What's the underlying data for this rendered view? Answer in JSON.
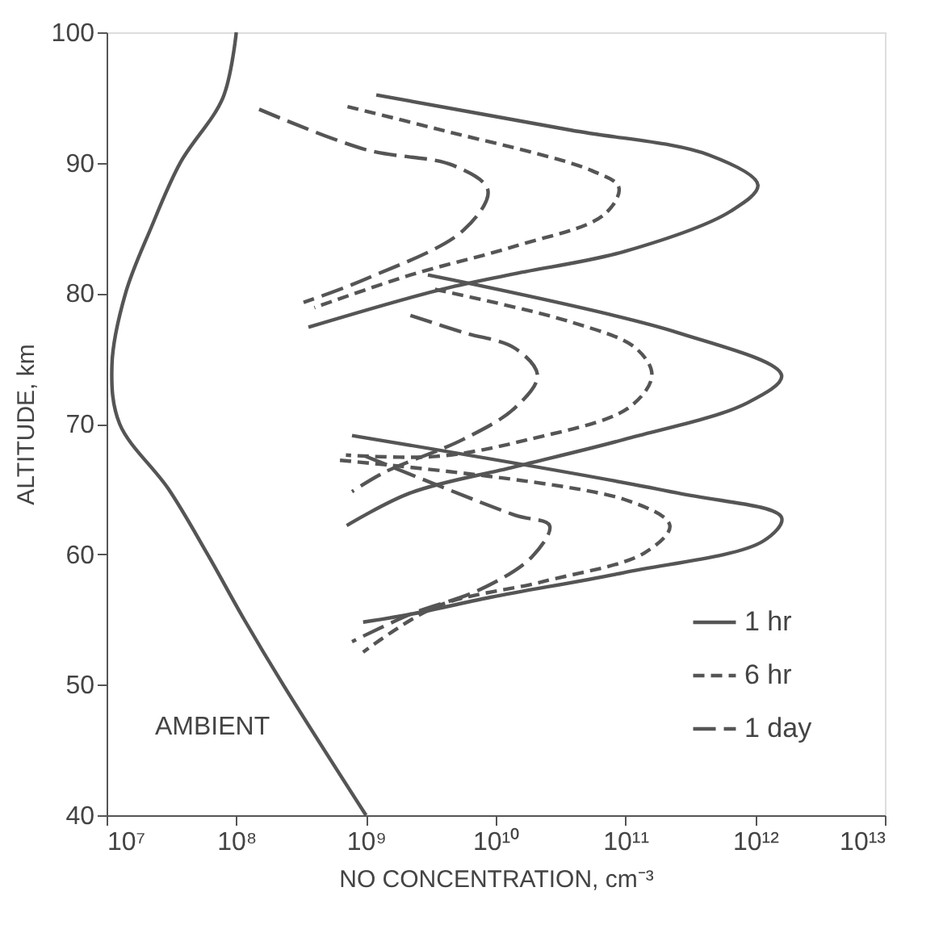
{
  "chart_data": {
    "type": "line",
    "xlabel": "NO CONCENTRATION, cm⁻³",
    "ylabel": "ALTITUDE, km",
    "log": "x",
    "grid": false,
    "legend": "bottom right",
    "marker": "none",
    "xlim": [
      10000000.0,
      10000000000000.0
    ],
    "ylim": [
      40,
      100
    ],
    "xticks": [
      {
        "value": 10000000.0,
        "label": "10⁷"
      },
      {
        "value": 100000000.0,
        "label": "10⁸"
      },
      {
        "value": 1000000000.0,
        "label": "10⁹"
      },
      {
        "value": 10000000000.0,
        "label": "10¹⁰"
      },
      {
        "value": 100000000000.0,
        "label": "10¹¹"
      },
      {
        "value": 1000000000000.0,
        "label": "10¹²"
      },
      {
        "value": 10000000000000.0,
        "label": "10¹³"
      }
    ],
    "yticks": [
      40,
      50,
      60,
      70,
      80,
      90,
      100
    ],
    "annotations": [
      "AMBIENT"
    ],
    "series": [
      {
        "color": "#555555",
        "line_style": "solid",
        "x": [
          100000000.0,
          79000000.0,
          37000000.0,
          22000000.0,
          14000000.0,
          11000000.0,
          12600000.0,
          30000000.0,
          60000000.0,
          115000000.0,
          230000000.0,
          1000000000.0
        ],
        "values": [
          100,
          95,
          90,
          85,
          80,
          74.5,
          70,
          65,
          60,
          55,
          50,
          40
        ]
      },
      {
        "name": "1 hr",
        "color": "#555555",
        "line_style": "solid",
        "x": [
          1200000000.0,
          38000000000.0,
          440000000000.0,
          1050000000000.0,
          650000000000.0,
          98000000000.0,
          14000000000.0,
          3500000000.0,
          360000000.0,
          null,
          3000000000.0,
          250000000000.0,
          1600000000000.0,
          870000000000.0,
          98000000000.0,
          14000000000.0,
          2200000000.0,
          710000000.0,
          null,
          780000000.0,
          250000000000.0,
          1600000000000.0,
          1150000000000.0,
          98000000000.0,
          9100000000.0,
          2200000000.0,
          950000000.0
        ],
        "values": [
          95.2,
          92.5,
          90.6,
          88.3,
          86.3,
          83.2,
          81.5,
          80.2,
          77.4,
          null,
          81.4,
          77.0,
          73.7,
          71.6,
          68.8,
          66.7,
          64.7,
          62.2,
          null,
          69.1,
          64.7,
          62.8,
          61.0,
          58.6,
          56.7,
          55.4,
          54.8
        ]
      },
      {
        "name": "6 hr",
        "color": "#555555",
        "line_style": "dashed",
        "x": [
          720000000.0,
          3500000000.0,
          55000000000.0,
          89000000000.0,
          68000000000.0,
          14000000000.0,
          2200000000.0,
          400000000.0,
          null,
          3400000000.0,
          38000000000.0,
          120000000000.0,
          160000000000.0,
          105000000000.0,
          18000000000.0,
          3500000000.0,
          700000000.0,
          null,
          630000000.0,
          98000000000.0,
          220000000000.0,
          140000000000.0,
          23000000000.0,
          3500000000.0,
          950000000.0
        ],
        "values": [
          94.3,
          92.6,
          89.4,
          88.1,
          86.0,
          83.6,
          81.4,
          78.9,
          null,
          80.3,
          77.8,
          75.8,
          73.7,
          71.2,
          68.8,
          67.5,
          67.6,
          null,
          67.2,
          64.2,
          62.2,
          60.1,
          57.9,
          56.0,
          52.5
        ]
      },
      {
        "name": "1 day",
        "color": "#555555",
        "line_style": "longdashed",
        "x": [
          150000000.0,
          1000000000.0,
          4700000000.0,
          8700000000.0,
          5600000000.0,
          1000000000.0,
          330000000.0,
          null,
          2200000000.0,
          5600000000.0,
          14000000000.0,
          21000000000.0,
          14000000000.0,
          5600000000.0,
          1400000000.0,
          780000000.0,
          null,
          1000000000.0,
          14000000000.0,
          26000000000.0,
          19000000000.0,
          7600000000.0,
          2200000000.0,
          780000000.0
        ],
        "values": [
          94.1,
          91.0,
          89.8,
          87.9,
          84.8,
          81.1,
          79.3,
          null,
          78.3,
          77.0,
          75.8,
          73.7,
          71.2,
          68.8,
          66.3,
          64.8,
          null,
          67.5,
          63.0,
          62.2,
          59.8,
          57.3,
          55.4,
          53.3
        ]
      }
    ]
  }
}
